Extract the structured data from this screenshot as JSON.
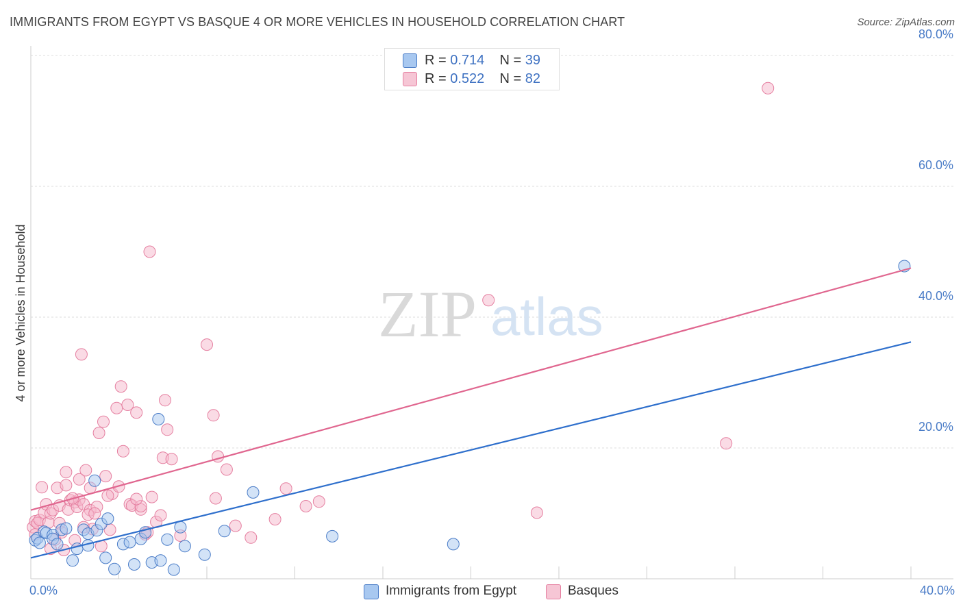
{
  "title": "IMMIGRANTS FROM EGYPT VS BASQUE 4 OR MORE VEHICLES IN HOUSEHOLD CORRELATION CHART",
  "source": "Source: ZipAtlas.com",
  "watermark": {
    "zip": "ZIP",
    "atlas": "atlas"
  },
  "colors": {
    "blue_fill": "#a8c8f0",
    "blue_stroke": "#4a7cc7",
    "blue_line": "#2e6fcc",
    "pink_fill": "#f6b8cb",
    "pink_stroke": "#e57fa0",
    "pink_line": "#e0668f",
    "grid": "#dddddd",
    "axis_text": "#4a7cc7"
  },
  "legend_top": [
    {
      "r_label": "R = ",
      "r_value": "0.714",
      "n_label": "N = ",
      "n_value": "39"
    },
    {
      "r_label": "R = ",
      "r_value": "0.522",
      "n_label": "N = ",
      "n_value": "82"
    }
  ],
  "legend_bottom": [
    "Immigrants from Egypt",
    "Basques"
  ],
  "chart_data": {
    "type": "scatter",
    "title": "IMMIGRANTS FROM EGYPT VS BASQUE 4 OR MORE VEHICLES IN HOUSEHOLD CORRELATION CHART",
    "xlabel": "",
    "ylabel": "4 or more Vehicles in Household",
    "xlim": [
      0,
      40
    ],
    "ylim": [
      0,
      82
    ],
    "x_tick_labels": [
      "0.0%",
      "40.0%"
    ],
    "y_ticks": [
      20,
      40,
      60,
      80
    ],
    "y_tick_labels": [
      "20.0%",
      "40.0%",
      "60.0%",
      "80.0%"
    ],
    "grid": true,
    "legend_position": "top-center",
    "series": [
      {
        "name": "Immigrants from Egypt",
        "r": 0.714,
        "n": 39,
        "trend": [
          [
            0,
            3.2
          ],
          [
            40,
            36.2
          ]
        ],
        "points": [
          [
            0.2,
            5.9
          ],
          [
            0.3,
            6.2
          ],
          [
            0.6,
            7.2
          ],
          [
            0.7,
            7.0
          ],
          [
            1.0,
            6.7
          ],
          [
            1.0,
            6.1
          ],
          [
            1.2,
            5.3
          ],
          [
            1.4,
            7.5
          ],
          [
            1.6,
            7.7
          ],
          [
            1.9,
            2.8
          ],
          [
            2.1,
            4.6
          ],
          [
            2.4,
            7.5
          ],
          [
            2.6,
            6.9
          ],
          [
            2.6,
            5.1
          ],
          [
            2.9,
            15.0
          ],
          [
            3.0,
            7.4
          ],
          [
            3.2,
            8.4
          ],
          [
            3.4,
            3.2
          ],
          [
            3.5,
            9.2
          ],
          [
            3.8,
            1.5
          ],
          [
            4.2,
            5.3
          ],
          [
            4.5,
            5.6
          ],
          [
            4.7,
            2.2
          ],
          [
            5.0,
            6.1
          ],
          [
            5.2,
            7.1
          ],
          [
            5.5,
            2.5
          ],
          [
            5.8,
            24.4
          ],
          [
            5.9,
            2.8
          ],
          [
            6.2,
            6.0
          ],
          [
            6.5,
            1.4
          ],
          [
            6.8,
            7.9
          ],
          [
            7.0,
            5.0
          ],
          [
            7.9,
            3.7
          ],
          [
            8.8,
            7.3
          ],
          [
            10.1,
            13.2
          ],
          [
            13.7,
            6.5
          ],
          [
            19.2,
            5.3
          ],
          [
            39.7,
            47.8
          ],
          [
            0.4,
            5.5
          ]
        ]
      },
      {
        "name": "Basques",
        "r": 0.522,
        "n": 82,
        "trend": [
          [
            0,
            10.5
          ],
          [
            40,
            47.5
          ]
        ],
        "points": [
          [
            0.1,
            7.9
          ],
          [
            0.2,
            6.8
          ],
          [
            0.2,
            8.8
          ],
          [
            0.3,
            8.5
          ],
          [
            0.4,
            9.0
          ],
          [
            0.5,
            14.0
          ],
          [
            0.6,
            10.1
          ],
          [
            0.7,
            11.4
          ],
          [
            0.8,
            8.6
          ],
          [
            0.9,
            10.0
          ],
          [
            1.0,
            10.5
          ],
          [
            1.1,
            6.0
          ],
          [
            1.2,
            13.9
          ],
          [
            1.3,
            11.2
          ],
          [
            1.3,
            8.5
          ],
          [
            1.5,
            4.4
          ],
          [
            1.6,
            16.3
          ],
          [
            1.6,
            14.3
          ],
          [
            1.7,
            10.6
          ],
          [
            1.8,
            12.0
          ],
          [
            2.0,
            11.7
          ],
          [
            2.1,
            11.0
          ],
          [
            2.2,
            15.2
          ],
          [
            2.2,
            12.1
          ],
          [
            2.3,
            34.3
          ],
          [
            2.4,
            7.9
          ],
          [
            2.4,
            11.4
          ],
          [
            2.5,
            16.6
          ],
          [
            2.7,
            13.9
          ],
          [
            2.7,
            10.5
          ],
          [
            2.8,
            7.6
          ],
          [
            3.0,
            11.0
          ],
          [
            3.1,
            22.3
          ],
          [
            3.2,
            5.0
          ],
          [
            3.3,
            24.0
          ],
          [
            3.4,
            15.7
          ],
          [
            3.6,
            7.5
          ],
          [
            3.7,
            13.0
          ],
          [
            3.9,
            26.1
          ],
          [
            4.0,
            14.1
          ],
          [
            4.1,
            29.4
          ],
          [
            4.2,
            19.5
          ],
          [
            4.4,
            26.6
          ],
          [
            4.5,
            11.4
          ],
          [
            4.6,
            11.2
          ],
          [
            4.8,
            25.4
          ],
          [
            5.0,
            10.6
          ],
          [
            5.0,
            11.1
          ],
          [
            5.2,
            6.8
          ],
          [
            5.4,
            50.0
          ],
          [
            5.5,
            12.5
          ],
          [
            5.7,
            8.7
          ],
          [
            5.9,
            9.7
          ],
          [
            6.0,
            18.5
          ],
          [
            6.1,
            27.3
          ],
          [
            6.2,
            22.8
          ],
          [
            6.4,
            18.3
          ],
          [
            6.8,
            6.6
          ],
          [
            8.0,
            35.8
          ],
          [
            8.3,
            25.0
          ],
          [
            8.4,
            12.3
          ],
          [
            8.5,
            18.7
          ],
          [
            8.9,
            16.7
          ],
          [
            9.3,
            8.1
          ],
          [
            10.0,
            6.3
          ],
          [
            11.1,
            9.1
          ],
          [
            11.6,
            13.8
          ],
          [
            12.5,
            11.1
          ],
          [
            13.1,
            11.8
          ],
          [
            20.8,
            42.6
          ],
          [
            23.0,
            10.1
          ],
          [
            31.6,
            20.7
          ],
          [
            33.5,
            75.0
          ],
          [
            1.9,
            12.3
          ],
          [
            2.6,
            9.8
          ],
          [
            3.5,
            12.7
          ],
          [
            4.8,
            12.2
          ],
          [
            5.3,
            7.1
          ],
          [
            0.9,
            4.6
          ],
          [
            1.4,
            7.1
          ],
          [
            2.0,
            5.9
          ],
          [
            2.9,
            10.0
          ]
        ]
      }
    ]
  }
}
